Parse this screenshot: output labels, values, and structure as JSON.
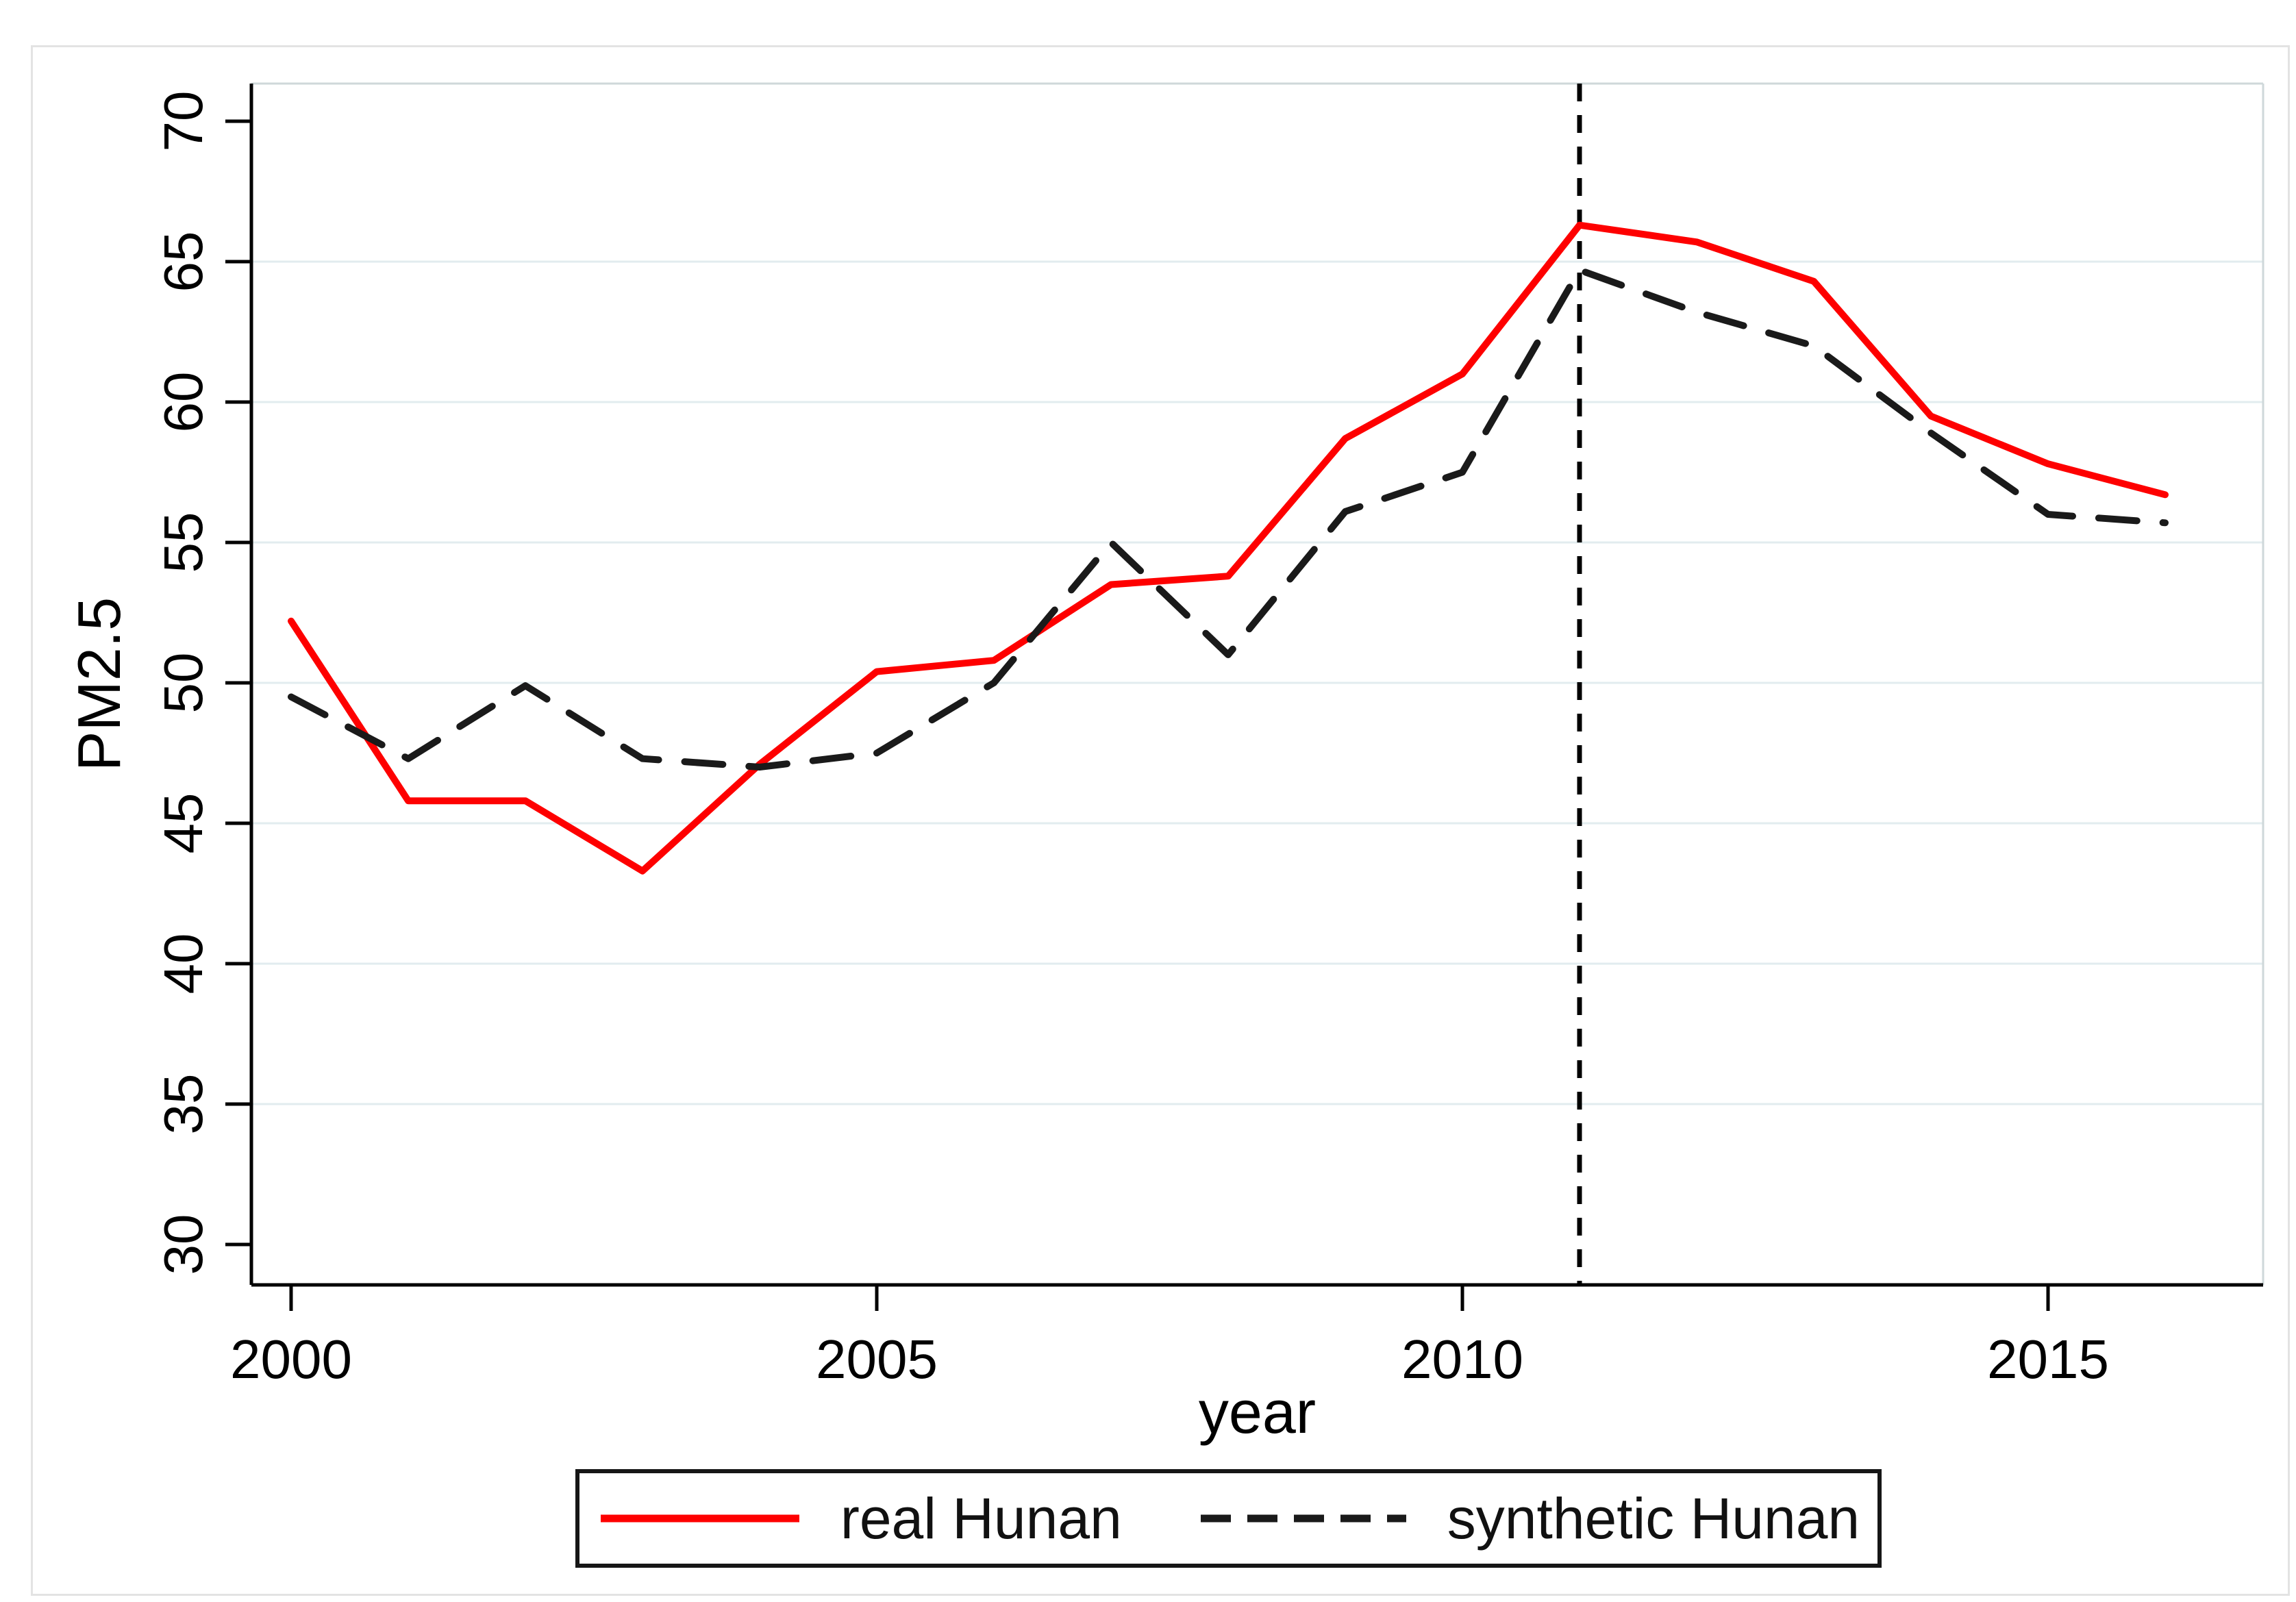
{
  "figure": {
    "background_color": "#ffffff",
    "axis_color": "#000000",
    "grid_color": "#e2ecef",
    "border_color": "#cfd8da",
    "vline_color": "#000000"
  },
  "chart_data": {
    "type": "line",
    "title": "",
    "xlabel": "year",
    "ylabel": "PM2.5",
    "x": [
      2000,
      2001,
      2002,
      2003,
      2004,
      2005,
      2006,
      2007,
      2008,
      2009,
      2010,
      2011,
      2012,
      2013,
      2014,
      2015,
      2016
    ],
    "series": [
      {
        "name": "real Hunan",
        "color": "#fe0000",
        "style": "solid",
        "values": [
          52.2,
          45.8,
          45.8,
          43.3,
          47.1,
          50.4,
          50.8,
          53.5,
          53.8,
          58.7,
          61.0,
          66.3,
          65.7,
          64.3,
          59.5,
          57.8,
          56.7
        ]
      },
      {
        "name": "synthetic Hunan",
        "color": "#1a1a1a",
        "style": "dashed",
        "values": [
          49.5,
          47.3,
          49.9,
          47.3,
          47.0,
          47.5,
          50.0,
          55.0,
          51.0,
          56.1,
          57.5,
          64.7,
          63.2,
          62.0,
          58.9,
          56.0,
          55.7
        ]
      }
    ],
    "ylim": [
      30,
      70
    ],
    "yticks": [
      30,
      35,
      40,
      45,
      50,
      55,
      60,
      65,
      70
    ],
    "xticks": [
      2000,
      2005,
      2010,
      2015
    ],
    "gridline_values": [
      35,
      40,
      45,
      50,
      55,
      60,
      65
    ],
    "grid": "horizontal",
    "vline": {
      "x": 2011,
      "style": "dotted"
    },
    "legend_position": "bottom-center"
  }
}
